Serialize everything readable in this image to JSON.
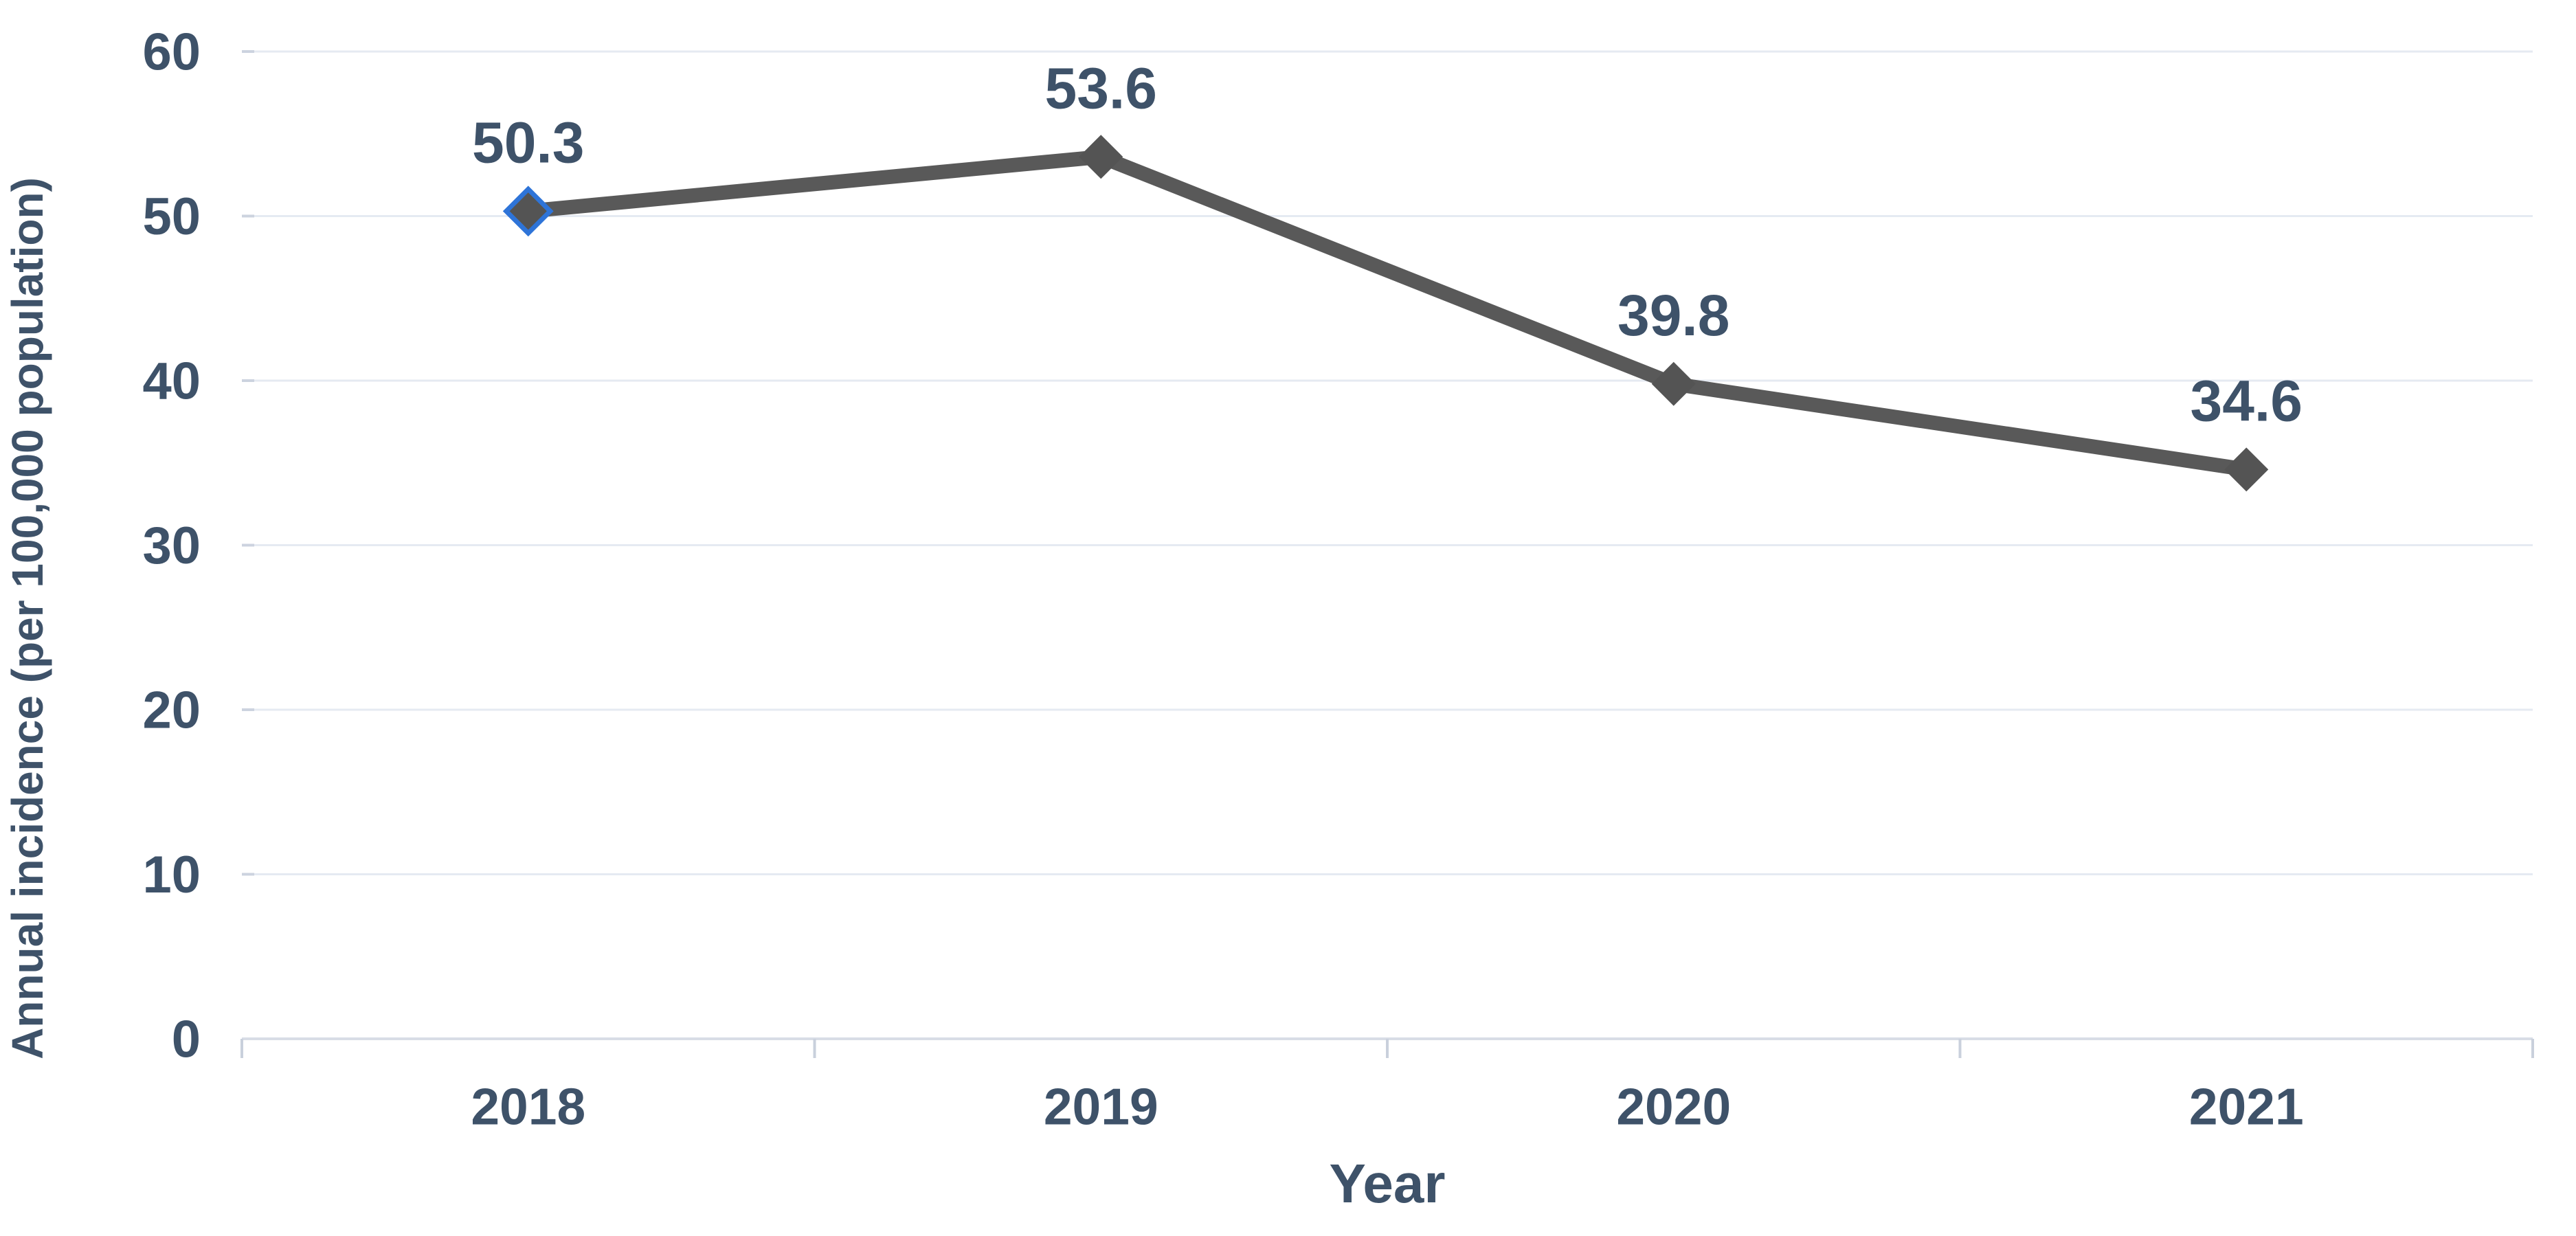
{
  "chart_data": {
    "type": "line",
    "title": "",
    "xlabel": "Year",
    "ylabel": "Annual incidence (per 100,000 population)",
    "categories": [
      "2018",
      "2019",
      "2020",
      "2021"
    ],
    "series": [
      {
        "name": "Annual incidence",
        "values": [
          50.3,
          53.6,
          39.8,
          34.6
        ]
      }
    ],
    "data_labels": [
      "50.3",
      "53.6",
      "39.8",
      "34.6"
    ],
    "y_ticks": [
      0,
      10,
      20,
      30,
      40,
      50,
      60
    ],
    "ylim": [
      0,
      60
    ],
    "grid": "horizontal",
    "legend": "none",
    "marker_shape": "diamond",
    "highlighted_marker_index": 0,
    "colors": {
      "line": "#595959",
      "marker_fill": "#545454",
      "highlight_outline": "#2E74D8",
      "text": "#3E5269",
      "gridline": "#E5EAF2",
      "gridline_nub": "#CCD3DF",
      "axis_line": "#D8DDE6",
      "axis_tick": "#C9D0DC",
      "background": "#FFFFFF"
    }
  }
}
